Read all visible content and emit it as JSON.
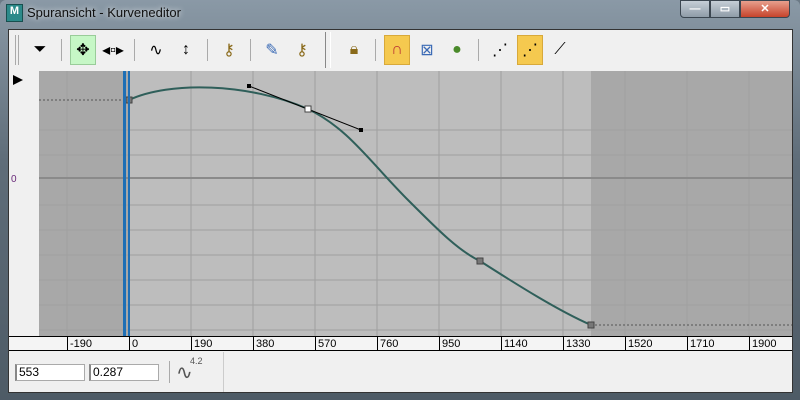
{
  "window": {
    "title": "Spuransicht - Kurveneditor",
    "app_icon": "M",
    "buttons": [
      "minimize",
      "maximize",
      "close"
    ]
  },
  "toolbar": {
    "groups": [
      [
        "filter-icon"
      ],
      [
        "move-keys-icon",
        "slide-keys-icon"
      ],
      [
        "scale-keys-icon",
        "scale-values-icon"
      ],
      [
        "add-keys-icon"
      ],
      [
        "draw-curves-icon",
        "reduce-keys-icon"
      ],
      [
        "lock-selection-icon"
      ],
      [
        "snap-frames-icon",
        "parameter-curve-out-of-range-icon",
        "show-keyable-icons-icon"
      ],
      [
        "show-all-tangents-icon",
        "show-tangents-icon",
        "lock-tangents-icon"
      ]
    ],
    "active": [
      "move-keys-icon",
      "snap-frames-icon",
      "show-tangents-icon"
    ]
  },
  "graph": {
    "zero_label": "0",
    "key_times": [
      0,
      553,
      1080,
      1416
    ],
    "selected_key_time": 553
  },
  "ruler": {
    "ticks": [
      "-190",
      "0",
      "190",
      "380",
      "570",
      "760",
      "950",
      "1140",
      "1330",
      "1520",
      "1710",
      "1900"
    ]
  },
  "status": {
    "time_field": "553",
    "value_field": "0.287",
    "curve_label": "4.2"
  },
  "colors": {
    "curve": "#2f5f5a",
    "time_slider": "#1e6fb5",
    "active_range": "#bdbdbd",
    "out_of_range": "#a8a8a8",
    "highlight": "#f5c94f"
  }
}
